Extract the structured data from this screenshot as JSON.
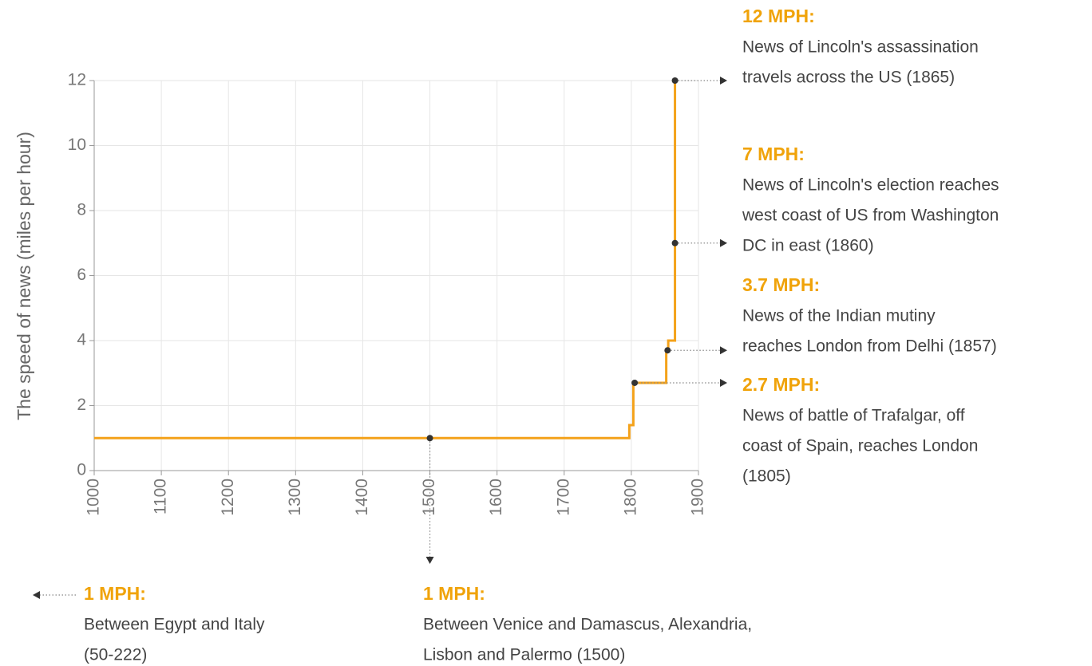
{
  "chart_data": {
    "type": "line",
    "y_label": "The speed of news (miles per hour)",
    "xlim": [
      1000,
      1900
    ],
    "xticks": [
      1000,
      1100,
      1200,
      1300,
      1400,
      1500,
      1600,
      1700,
      1800,
      1900
    ],
    "ylim": [
      0,
      12
    ],
    "yticks": [
      0,
      2,
      4,
      6,
      8,
      10,
      12
    ],
    "grid": true,
    "series": [
      {
        "color": "#f4a21a",
        "x": [
          1000,
          1797,
          1797,
          1803,
          1803,
          1852,
          1852,
          1855,
          1855,
          1865,
          1865
        ],
        "values": [
          1,
          1,
          1.4,
          1.4,
          2.7,
          2.7,
          3.7,
          3.7,
          4,
          4,
          12
        ]
      }
    ],
    "annotations": [
      {
        "label": "12 MPH:",
        "lines": [
          "News of Lincoln's assassination",
          "travels across the US (1865)"
        ],
        "x": 1865,
        "y": 12
      },
      {
        "label": "7 MPH:",
        "lines": [
          "News of Lincoln's election reaches",
          "west coast of US from Washington",
          "DC in east (1860)"
        ],
        "x": 1865,
        "y": 7
      },
      {
        "label": "3.7 MPH:",
        "lines": [
          "News of the Indian mutiny",
          "reaches London from Delhi (1857)"
        ],
        "x": 1854,
        "y": 3.7
      },
      {
        "label": "2.7 MPH:",
        "lines": [
          "News of battle of Trafalgar, off",
          "coast of Spain, reaches London",
          "(1805)"
        ],
        "x": 1805,
        "y": 2.7
      },
      {
        "label": "1 MPH:",
        "lines": [
          "Between Egypt and Italy",
          "(50-222)"
        ]
      },
      {
        "label": "1 MPH:",
        "lines": [
          "Between Venice and Damascus, Alexandria,",
          "Lisbon and Palermo (1500)"
        ],
        "x": 1500,
        "y": 1
      }
    ]
  }
}
